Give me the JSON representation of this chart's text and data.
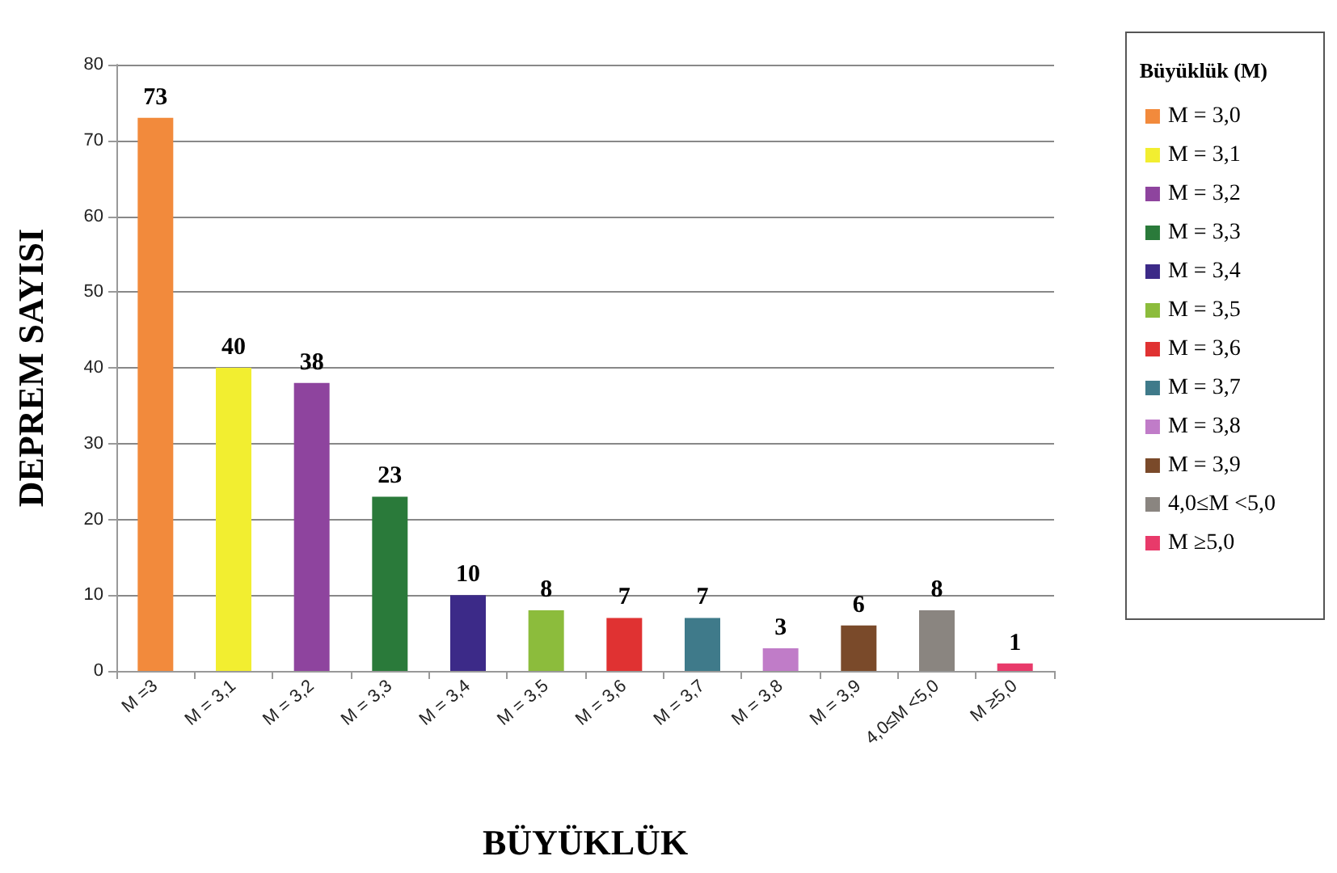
{
  "chart_data": {
    "type": "bar",
    "xlabel": "BÜYÜKLÜK",
    "ylabel": "DEPREM SAYISI",
    "legend_title": "Büyüklük (M)",
    "categories": [
      "M =3",
      "M = 3,1",
      "M = 3,2",
      "M = 3,3",
      "M = 3,4",
      "M = 3,5",
      "M = 3,6",
      "M = 3,7",
      "M = 3,8",
      "M = 3,9",
      "4,0≤M <5,0",
      "M ≥5,0"
    ],
    "series": [
      {
        "name": "M = 3,0",
        "color": "#f28a3c",
        "values": [
          73,
          null,
          null,
          null,
          null,
          null,
          null,
          null,
          null,
          null,
          null,
          null
        ]
      },
      {
        "name": "M = 3,1",
        "color": "#f2ee30",
        "values": [
          null,
          40,
          null,
          null,
          null,
          null,
          null,
          null,
          null,
          null,
          null,
          null
        ]
      },
      {
        "name": "M = 3,2",
        "color": "#8e449e",
        "values": [
          null,
          null,
          38,
          null,
          null,
          null,
          null,
          null,
          null,
          null,
          null,
          null
        ]
      },
      {
        "name": "M = 3,3",
        "color": "#2a7a3a",
        "values": [
          null,
          null,
          null,
          23,
          null,
          null,
          null,
          null,
          null,
          null,
          null,
          null
        ]
      },
      {
        "name": "M = 3,4",
        "color": "#3c2a88",
        "values": [
          null,
          null,
          null,
          null,
          10,
          null,
          null,
          null,
          null,
          null,
          null,
          null
        ]
      },
      {
        "name": "M = 3,5",
        "color": "#8cbc3c",
        "values": [
          null,
          null,
          null,
          null,
          null,
          8,
          null,
          null,
          null,
          null,
          null,
          null
        ]
      },
      {
        "name": "M = 3,6",
        "color": "#e03232",
        "values": [
          null,
          null,
          null,
          null,
          null,
          null,
          7,
          null,
          null,
          null,
          null,
          null
        ]
      },
      {
        "name": "M = 3,7",
        "color": "#3f7a8a",
        "values": [
          null,
          null,
          null,
          null,
          null,
          null,
          null,
          7,
          null,
          null,
          null,
          null
        ]
      },
      {
        "name": "M = 3,8",
        "color": "#c07cc8",
        "values": [
          null,
          null,
          null,
          null,
          null,
          null,
          null,
          null,
          3,
          null,
          null,
          null
        ]
      },
      {
        "name": "M = 3,9",
        "color": "#7a4a2a",
        "values": [
          null,
          null,
          null,
          null,
          null,
          null,
          null,
          null,
          null,
          6,
          null,
          null
        ]
      },
      {
        "name": "4,0≤M <5,0",
        "color": "#8a8580",
        "values": [
          null,
          null,
          null,
          null,
          null,
          null,
          null,
          null,
          null,
          null,
          8,
          null
        ]
      },
      {
        "name": "M ≥5,0",
        "color": "#e83a6a",
        "values": [
          null,
          null,
          null,
          null,
          null,
          null,
          null,
          null,
          null,
          null,
          null,
          1
        ]
      }
    ],
    "ylim": [
      0,
      80
    ],
    "yticks": [
      0,
      10,
      20,
      30,
      40,
      50,
      60,
      70,
      80
    ],
    "grid": "y",
    "legend": "right",
    "data_labels": true
  }
}
